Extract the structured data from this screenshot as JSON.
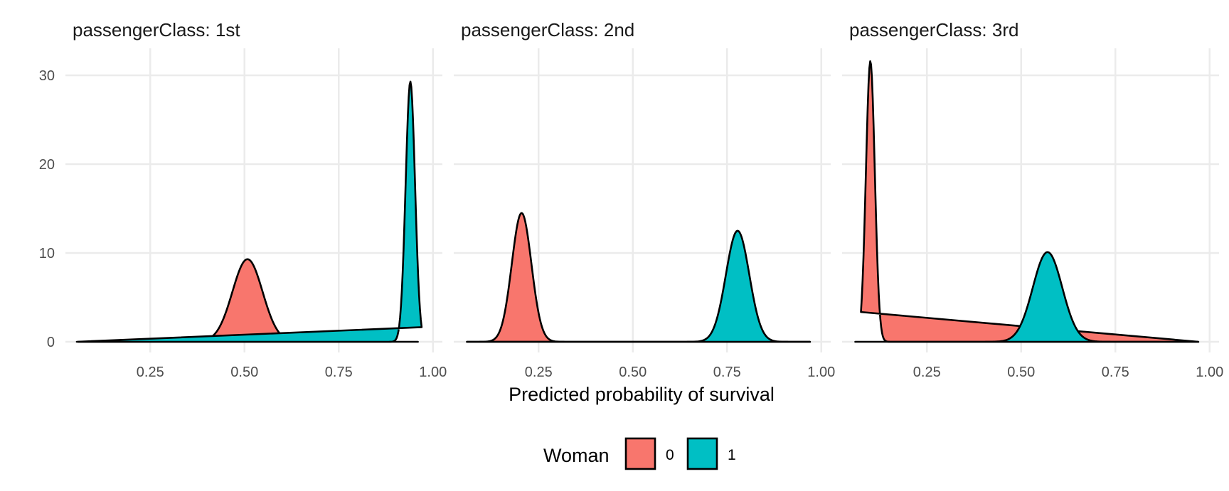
{
  "chart_data": {
    "type": "area",
    "subtype": "density-facets",
    "xlabel": "Predicted probability of survival",
    "ylabel": "",
    "xlim": [
      0.05,
      1.0
    ],
    "ylim": [
      0,
      32
    ],
    "x_ticks": [
      0.25,
      0.5,
      0.75,
      1.0
    ],
    "x_tick_labels": [
      "0.25",
      "0.50",
      "0.75",
      "1.00"
    ],
    "y_ticks": [
      0,
      10,
      20,
      30
    ],
    "y_tick_labels": [
      "0",
      "10",
      "20",
      "30"
    ],
    "grid": true,
    "legend": {
      "title": "Woman",
      "position": "bottom",
      "entries": [
        {
          "label": "0",
          "color": "#F8766D"
        },
        {
          "label": "1",
          "color": "#00BFC4"
        }
      ]
    },
    "facets": [
      {
        "title": "passengerClass: 1st",
        "series": [
          {
            "name": "0",
            "color": "#F8766D",
            "range": [
              0.06,
              0.96
            ],
            "peaks": [
              {
                "x": 0.508,
                "y": 9.3,
                "sd": 0.04
              }
            ]
          },
          {
            "name": "1",
            "color": "#00BFC4",
            "range": [
              0.055,
              0.97
            ],
            "peaks": [
              {
                "x": 0.94,
                "y": 29.3,
                "sd": 0.0125
              }
            ]
          }
        ]
      },
      {
        "title": "passengerClass: 2nd",
        "series": [
          {
            "name": "0",
            "color": "#F8766D",
            "range": [
              0.06,
              0.97
            ],
            "peaks": [
              {
                "x": 0.205,
                "y": 14.5,
                "sd": 0.026
              }
            ]
          },
          {
            "name": "1",
            "color": "#00BFC4",
            "range": [
              0.06,
              0.97
            ],
            "peaks": [
              {
                "x": 0.778,
                "y": 12.5,
                "sd": 0.031
              }
            ]
          }
        ]
      },
      {
        "title": "passengerClass: 3rd",
        "series": [
          {
            "name": "0",
            "color": "#F8766D",
            "range": [
              0.075,
              0.97
            ],
            "peaks": [
              {
                "x": 0.1,
                "y": 31.6,
                "sd": 0.0118
              }
            ]
          },
          {
            "name": "1",
            "color": "#00BFC4",
            "range": [
              0.06,
              0.97
            ],
            "peaks": [
              {
                "x": 0.57,
                "y": 10.1,
                "sd": 0.039
              }
            ]
          }
        ]
      }
    ]
  }
}
